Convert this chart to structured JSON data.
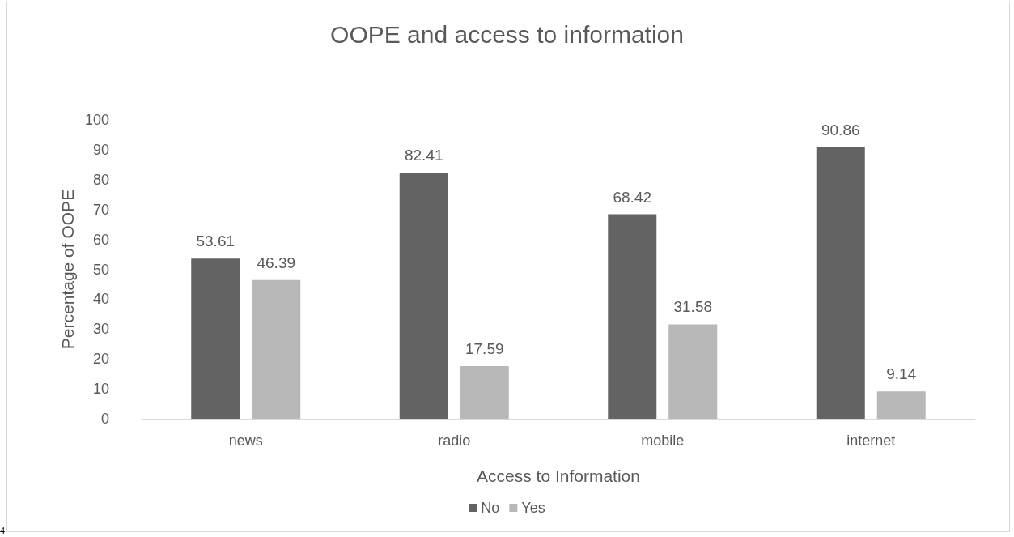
{
  "chart_data": {
    "type": "bar",
    "title": "OOPE and access to information",
    "xlabel": "Access to Information",
    "ylabel": "Percentage of OOPE",
    "categories": [
      "news",
      "radio",
      "mobile",
      "internet"
    ],
    "series": [
      {
        "name": "No",
        "color": "#636363",
        "values": [
          53.61,
          82.41,
          68.42,
          90.86
        ]
      },
      {
        "name": "Yes",
        "color": "#b8b8b8",
        "values": [
          46.39,
          17.59,
          31.58,
          9.14
        ]
      }
    ],
    "ylim": [
      0,
      100
    ],
    "yticks": [
      0,
      10,
      20,
      30,
      40,
      50,
      60,
      70,
      80,
      90,
      100
    ],
    "grid": false,
    "legend": "bottom",
    "data_labels": true,
    "annotations": [
      "4"
    ]
  }
}
